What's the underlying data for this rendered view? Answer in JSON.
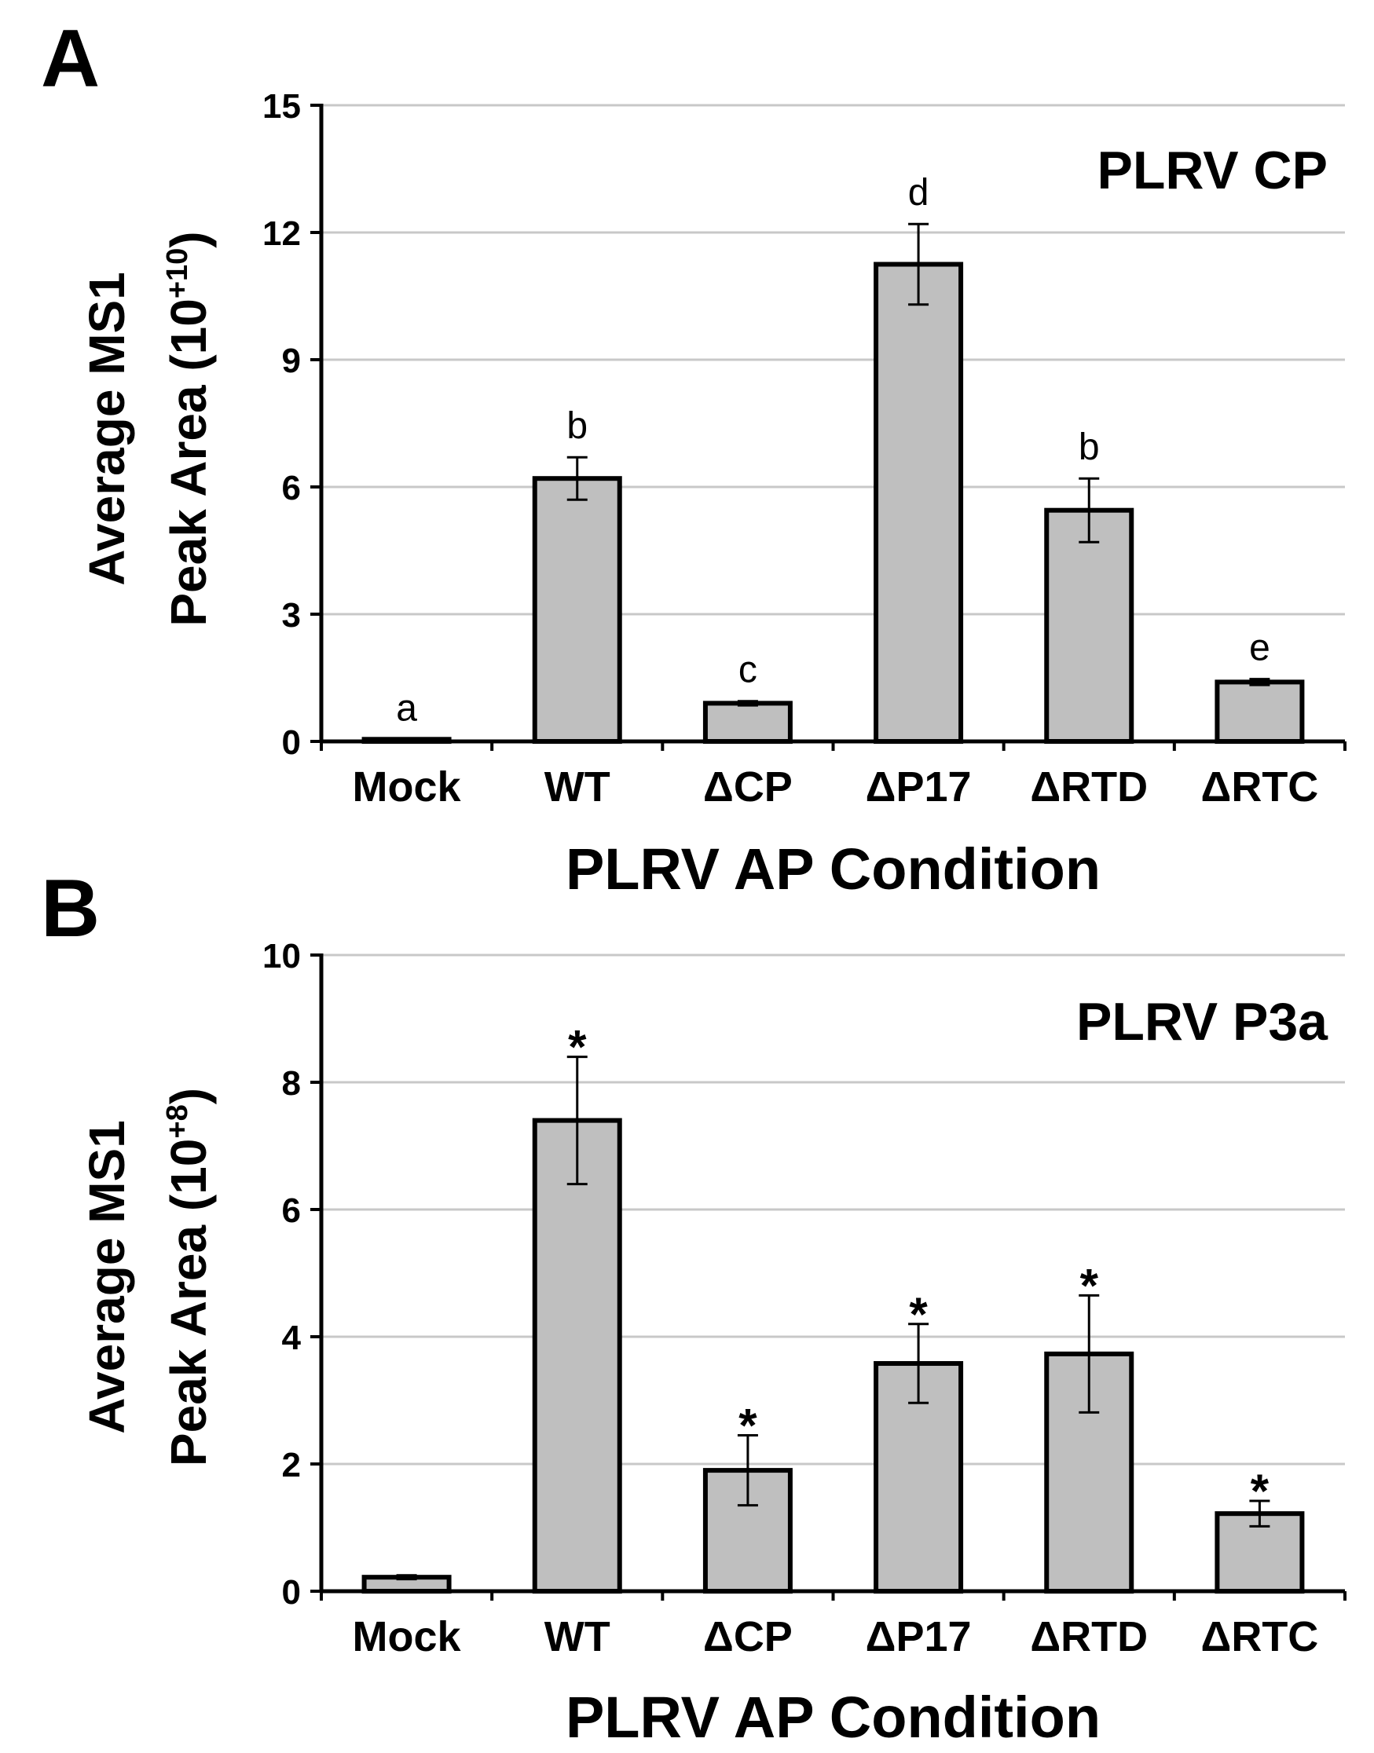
{
  "chart_data": [
    {
      "panel": "A",
      "type": "bar",
      "title": "PLRV CP",
      "ylabel_line1": "Average MS1",
      "ylabel_line2": "Peak Area (10",
      "ylabel_exp": "+10",
      "ylabel_close": ")",
      "xlabel": "PLRV AP Condition",
      "categories": [
        "Mock",
        "WT",
        "ΔCP",
        "ΔP17",
        "ΔRTD",
        "ΔRTC"
      ],
      "values": [
        0.05,
        6.2,
        0.9,
        11.25,
        5.45,
        1.4
      ],
      "errors": [
        0.0,
        0.5,
        0.05,
        0.95,
        0.75,
        0.07
      ],
      "annotations": [
        "a",
        "b",
        "c",
        "d",
        "b",
        "e"
      ],
      "ylim": [
        0,
        15
      ],
      "yticks": [
        0,
        3,
        6,
        9,
        12,
        15
      ],
      "colors": {
        "bar_fill": "#bfbfbf",
        "bar_stroke": "#000000",
        "grid": "#c8c8c8"
      }
    },
    {
      "panel": "B",
      "type": "bar",
      "title": "PLRV P3a",
      "ylabel_line1": "Average MS1",
      "ylabel_line2": "Peak Area (10",
      "ylabel_exp": "+8",
      "ylabel_close": ")",
      "xlabel": "PLRV AP Condition",
      "categories": [
        "Mock",
        "WT",
        "ΔCP",
        "ΔP17",
        "ΔRTD",
        "ΔRTC"
      ],
      "values": [
        0.22,
        7.4,
        1.9,
        3.58,
        3.73,
        1.22
      ],
      "errors": [
        0.03,
        1.0,
        0.55,
        0.62,
        0.92,
        0.2
      ],
      "annotations": [
        "",
        "*",
        "*",
        "*",
        "*",
        "*"
      ],
      "ylim": [
        0,
        10
      ],
      "yticks": [
        0,
        2,
        4,
        6,
        8,
        10
      ],
      "colors": {
        "bar_fill": "#bfbfbf",
        "bar_stroke": "#000000",
        "grid": "#c8c8c8"
      }
    }
  ]
}
